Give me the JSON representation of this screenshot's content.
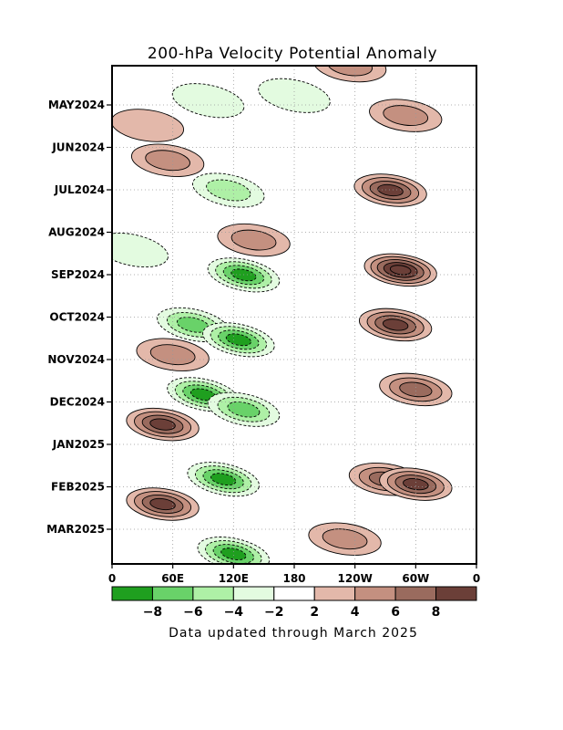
{
  "chart_data": {
    "type": "heatmap",
    "title": "200-hPa Velocity Potential Anomaly",
    "footnote": "Data updated through March 2025",
    "x_tick_labels": [
      "0",
      "60E",
      "120E",
      "180",
      "120W",
      "60W",
      "0"
    ],
    "y_tick_labels": [
      "MAY2024",
      "JUN2024",
      "JUL2024",
      "AUG2024",
      "SEP2024",
      "OCT2024",
      "NOV2024",
      "DEC2024",
      "JAN2025",
      "FEB2025",
      "MAR2025"
    ],
    "colorbar": {
      "tick_labels": [
        "−8",
        "−6",
        "−4",
        "−2",
        "2",
        "4",
        "6",
        "8"
      ],
      "colors": [
        "#1f9f1f",
        "#69d269",
        "#aef0a6",
        "#e3fbe0",
        "#ffffff",
        "#e3b8aa",
        "#c49080",
        "#9a6b5e",
        "#6b3f38"
      ]
    },
    "features": [
      {
        "lon": 235,
        "t": 0.0,
        "value": 5
      },
      {
        "lon": 290,
        "t": 0.1,
        "value": 5
      },
      {
        "lon": 180,
        "t": 0.06,
        "value": -2
      },
      {
        "lon": 95,
        "t": 0.07,
        "value": -3
      },
      {
        "lon": 35,
        "t": 0.12,
        "value": 3
      },
      {
        "lon": 55,
        "t": 0.19,
        "value": 4
      },
      {
        "lon": 275,
        "t": 0.25,
        "value": 9
      },
      {
        "lon": 115,
        "t": 0.25,
        "value": -4
      },
      {
        "lon": 140,
        "t": 0.35,
        "value": 5
      },
      {
        "lon": 20,
        "t": 0.37,
        "value": -3
      },
      {
        "lon": 285,
        "t": 0.41,
        "value": 10
      },
      {
        "lon": 130,
        "t": 0.42,
        "value": -8
      },
      {
        "lon": 280,
        "t": 0.52,
        "value": 8
      },
      {
        "lon": 80,
        "t": 0.52,
        "value": -7
      },
      {
        "lon": 125,
        "t": 0.55,
        "value": -8
      },
      {
        "lon": 60,
        "t": 0.58,
        "value": 5
      },
      {
        "lon": 300,
        "t": 0.65,
        "value": 7
      },
      {
        "lon": 90,
        "t": 0.66,
        "value": -8
      },
      {
        "lon": 50,
        "t": 0.72,
        "value": 8
      },
      {
        "lon": 130,
        "t": 0.69,
        "value": -6
      },
      {
        "lon": 270,
        "t": 0.83,
        "value": 7
      },
      {
        "lon": 300,
        "t": 0.84,
        "value": 8
      },
      {
        "lon": 110,
        "t": 0.83,
        "value": -8
      },
      {
        "lon": 50,
        "t": 0.88,
        "value": 8
      },
      {
        "lon": 230,
        "t": 0.95,
        "value": 5
      },
      {
        "lon": 120,
        "t": 0.98,
        "value": -8
      }
    ]
  }
}
